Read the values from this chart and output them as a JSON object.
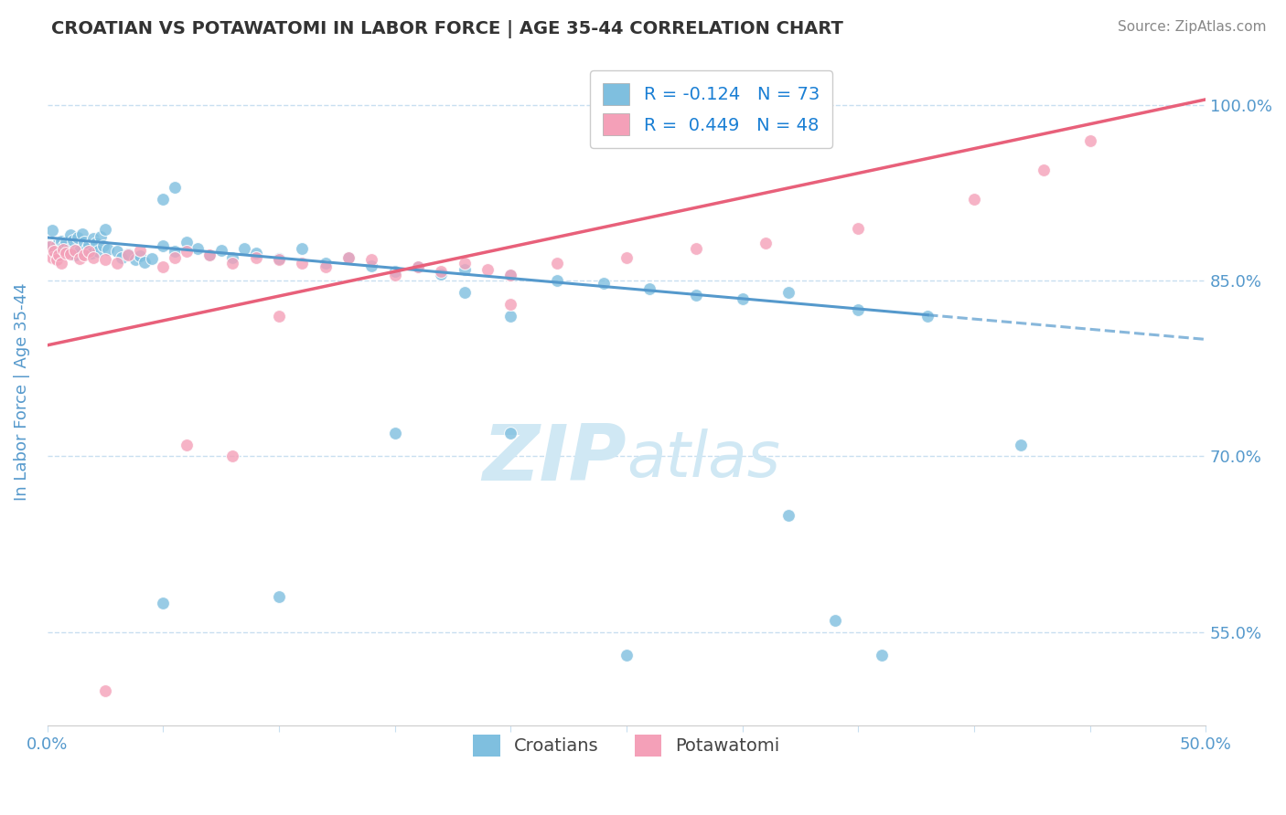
{
  "title": "CROATIAN VS POTAWATOMI IN LABOR FORCE | AGE 35-44 CORRELATION CHART",
  "source_text": "Source: ZipAtlas.com",
  "ylabel": "In Labor Force | Age 35-44",
  "xlim": [
    0.0,
    0.5
  ],
  "ylim": [
    0.47,
    1.04
  ],
  "xticks": [
    0.0,
    0.05,
    0.1,
    0.15,
    0.2,
    0.25,
    0.3,
    0.35,
    0.4,
    0.45,
    0.5
  ],
  "xtick_labels": [
    "0.0%",
    "",
    "",
    "",
    "",
    "",
    "",
    "",
    "",
    "",
    "50.0%"
  ],
  "yticks": [
    0.55,
    0.7,
    0.85,
    1.0
  ],
  "ytick_labels": [
    "55.0%",
    "70.0%",
    "85.0%",
    "100.0%"
  ],
  "croatian_R": -0.124,
  "croatian_N": 73,
  "potawatomi_R": 0.449,
  "potawatomi_N": 48,
  "blue_color": "#7fbfdf",
  "pink_color": "#f4a0b8",
  "blue_line_color": "#5599cc",
  "pink_line_color": "#e8607a",
  "title_color": "#333333",
  "tick_color": "#5599cc",
  "grid_color": "#c8dff0",
  "watermark_color": "#d0e8f4",
  "legend_color": "#1a7fd4",
  "croatians_scatter_x": [
    0.001,
    0.002,
    0.003,
    0.004,
    0.005,
    0.006,
    0.007,
    0.008,
    0.009,
    0.01,
    0.011,
    0.012,
    0.013,
    0.014,
    0.015,
    0.016,
    0.017,
    0.018,
    0.019,
    0.02,
    0.021,
    0.022,
    0.023,
    0.024,
    0.025,
    0.026,
    0.03,
    0.032,
    0.035,
    0.038,
    0.04,
    0.042,
    0.045,
    0.05,
    0.055,
    0.06,
    0.065,
    0.07,
    0.075,
    0.08,
    0.085,
    0.09,
    0.1,
    0.11,
    0.12,
    0.13,
    0.14,
    0.15,
    0.16,
    0.17,
    0.18,
    0.2,
    0.22,
    0.24,
    0.26,
    0.28,
    0.3,
    0.32,
    0.35,
    0.38,
    0.05,
    0.055,
    0.18,
    0.2,
    0.42,
    0.32,
    0.34,
    0.36,
    0.05,
    0.1,
    0.15,
    0.2,
    0.25
  ],
  "croatians_scatter_y": [
    0.88,
    0.893,
    0.876,
    0.881,
    0.875,
    0.884,
    0.879,
    0.883,
    0.877,
    0.889,
    0.885,
    0.872,
    0.887,
    0.876,
    0.89,
    0.883,
    0.878,
    0.881,
    0.874,
    0.886,
    0.882,
    0.875,
    0.888,
    0.88,
    0.894,
    0.877,
    0.875,
    0.87,
    0.873,
    0.868,
    0.871,
    0.866,
    0.869,
    0.88,
    0.875,
    0.883,
    0.878,
    0.872,
    0.876,
    0.87,
    0.878,
    0.874,
    0.869,
    0.878,
    0.865,
    0.87,
    0.863,
    0.858,
    0.862,
    0.856,
    0.86,
    0.855,
    0.85,
    0.848,
    0.843,
    0.838,
    0.835,
    0.84,
    0.825,
    0.82,
    0.92,
    0.93,
    0.84,
    0.82,
    0.71,
    0.65,
    0.56,
    0.53,
    0.575,
    0.58,
    0.72,
    0.72,
    0.53
  ],
  "potawatomi_scatter_x": [
    0.001,
    0.002,
    0.003,
    0.004,
    0.005,
    0.006,
    0.007,
    0.008,
    0.01,
    0.012,
    0.014,
    0.016,
    0.018,
    0.02,
    0.025,
    0.03,
    0.035,
    0.04,
    0.05,
    0.055,
    0.06,
    0.07,
    0.08,
    0.09,
    0.1,
    0.11,
    0.12,
    0.13,
    0.14,
    0.15,
    0.16,
    0.17,
    0.18,
    0.19,
    0.2,
    0.22,
    0.25,
    0.28,
    0.31,
    0.35,
    0.4,
    0.43,
    0.45,
    0.1,
    0.2,
    0.06,
    0.08,
    0.025
  ],
  "potawatomi_scatter_y": [
    0.879,
    0.87,
    0.875,
    0.868,
    0.872,
    0.865,
    0.877,
    0.874,
    0.873,
    0.876,
    0.869,
    0.872,
    0.875,
    0.87,
    0.868,
    0.865,
    0.872,
    0.876,
    0.862,
    0.87,
    0.875,
    0.872,
    0.865,
    0.87,
    0.868,
    0.865,
    0.862,
    0.87,
    0.868,
    0.855,
    0.862,
    0.858,
    0.865,
    0.86,
    0.855,
    0.865,
    0.87,
    0.878,
    0.882,
    0.895,
    0.92,
    0.945,
    0.97,
    0.82,
    0.83,
    0.71,
    0.7,
    0.5
  ],
  "trend_croatian_x0": 0.0,
  "trend_croatian_x1": 0.5,
  "trend_croatian_y0": 0.887,
  "trend_croatian_y1": 0.8,
  "trend_potawatomi_x0": 0.0,
  "trend_potawatomi_x1": 0.5,
  "trend_potawatomi_y0": 0.795,
  "trend_potawatomi_y1": 1.005,
  "trend_solid_end": 0.38
}
